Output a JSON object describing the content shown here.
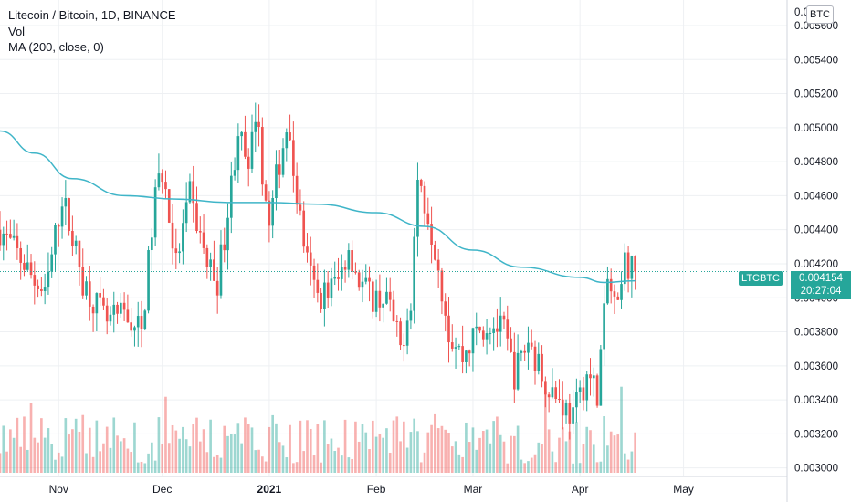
{
  "legend": {
    "title": "Litecoin / Bitcoin, 1D, BINANCE",
    "vol": "Vol",
    "ma": "MA (200, close, 0)"
  },
  "currency_badge": "BTC",
  "symbol_tag": "LTCBTC",
  "last_price": "0.004154",
  "countdown": "20:27:04",
  "colors": {
    "up": "#26a69a",
    "down": "#ef5350",
    "ma": "#3fb5c8",
    "grid": "#eef0f3",
    "axis_text": "#131722",
    "price_line": "#26a69a"
  },
  "chart_data": {
    "type": "candlestick",
    "title": "Litecoin / Bitcoin, 1D, BINANCE",
    "y_axis": {
      "range": [
        0.00295,
        0.00575
      ],
      "ticks": [
        0.003,
        0.0032,
        0.0034,
        0.0036,
        0.0038,
        0.004,
        0.0042,
        0.0044,
        0.0046,
        0.0048,
        0.005,
        0.0052,
        0.0054,
        0.0056
      ],
      "tick_labels": [
        "0.003000",
        "0.003200",
        "0.003400",
        "0.003600",
        "0.003800",
        "0.004000",
        "0.004200",
        "0.004400",
        "0.004600",
        "0.004800",
        "0.005000",
        "0.005200",
        "0.005400",
        "0.005600"
      ],
      "top_label_partial": "0.0"
    },
    "x_axis": {
      "range": [
        "2020-10-15",
        "2021-05-31"
      ],
      "ticks": [
        {
          "date": "2020-11-01",
          "label": "Nov"
        },
        {
          "date": "2020-12-01",
          "label": "Dec"
        },
        {
          "date": "2021-01-01",
          "label": "2021"
        },
        {
          "date": "2021-02-01",
          "label": "Feb"
        },
        {
          "date": "2021-03-01",
          "label": "Mar"
        },
        {
          "date": "2021-04-01",
          "label": "Apr"
        },
        {
          "date": "2021-05-01",
          "label": "May"
        }
      ]
    },
    "grid": true,
    "last_price": 0.004154,
    "price_anchors": [
      [
        "2020-10-15",
        0.0044
      ],
      [
        "2020-10-22",
        0.0042
      ],
      [
        "2020-10-28",
        0.004
      ],
      [
        "2020-11-02",
        0.0046
      ],
      [
        "2020-11-08",
        0.0041
      ],
      [
        "2020-11-15",
        0.00385
      ],
      [
        "2020-11-20",
        0.0039
      ],
      [
        "2020-11-25",
        0.0038
      ],
      [
        "2020-11-29",
        0.0046
      ],
      [
        "2020-12-01",
        0.00475
      ],
      [
        "2020-12-05",
        0.0042
      ],
      [
        "2020-12-09",
        0.0046
      ],
      [
        "2020-12-14",
        0.0042
      ],
      [
        "2020-12-17",
        0.0041
      ],
      [
        "2020-12-20",
        0.0045
      ],
      [
        "2020-12-23",
        0.005
      ],
      [
        "2020-12-26",
        0.0047
      ],
      [
        "2020-12-28",
        0.0051
      ],
      [
        "2021-01-01",
        0.0044
      ],
      [
        "2021-01-03",
        0.0047
      ],
      [
        "2021-01-06",
        0.005
      ],
      [
        "2021-01-09",
        0.0046
      ],
      [
        "2021-01-12",
        0.0042
      ],
      [
        "2021-01-15",
        0.004
      ],
      [
        "2021-01-21",
        0.0041
      ],
      [
        "2021-01-24",
        0.0043
      ],
      [
        "2021-01-27",
        0.0041
      ],
      [
        "2021-01-31",
        0.004
      ],
      [
        "2021-02-04",
        0.004
      ],
      [
        "2021-02-08",
        0.0037
      ],
      [
        "2021-02-11",
        0.004
      ],
      [
        "2021-02-13",
        0.0047
      ],
      [
        "2021-02-16",
        0.0045
      ],
      [
        "2021-02-19",
        0.0042
      ],
      [
        "2021-02-22",
        0.0038
      ],
      [
        "2021-02-26",
        0.00365
      ],
      [
        "2021-03-02",
        0.0038
      ],
      [
        "2021-03-06",
        0.00385
      ],
      [
        "2021-03-10",
        0.0038
      ],
      [
        "2021-03-13",
        0.00355
      ],
      [
        "2021-03-17",
        0.00375
      ],
      [
        "2021-03-21",
        0.00355
      ],
      [
        "2021-03-26",
        0.0034
      ],
      [
        "2021-03-30",
        0.0033
      ],
      [
        "2021-04-03",
        0.00355
      ],
      [
        "2021-04-06",
        0.00345
      ],
      [
        "2021-04-09",
        0.0041
      ],
      [
        "2021-04-12",
        0.0039
      ],
      [
        "2021-04-14",
        0.0042
      ],
      [
        "2021-04-17",
        0.004154
      ]
    ],
    "ma200_anchors": [
      [
        "2020-10-15",
        0.00498
      ],
      [
        "2020-10-25",
        0.00485
      ],
      [
        "2020-11-05",
        0.0047
      ],
      [
        "2020-11-20",
        0.0046
      ],
      [
        "2020-12-05",
        0.00458
      ],
      [
        "2020-12-20",
        0.00456
      ],
      [
        "2021-01-01",
        0.00456
      ],
      [
        "2021-01-15",
        0.00455
      ],
      [
        "2021-02-01",
        0.0045
      ],
      [
        "2021-02-15",
        0.00442
      ],
      [
        "2021-03-01",
        0.00428
      ],
      [
        "2021-03-15",
        0.00418
      ],
      [
        "2021-04-01",
        0.00412
      ],
      [
        "2021-04-08",
        0.00409
      ],
      [
        "2021-04-17",
        0.0041
      ]
    ]
  }
}
